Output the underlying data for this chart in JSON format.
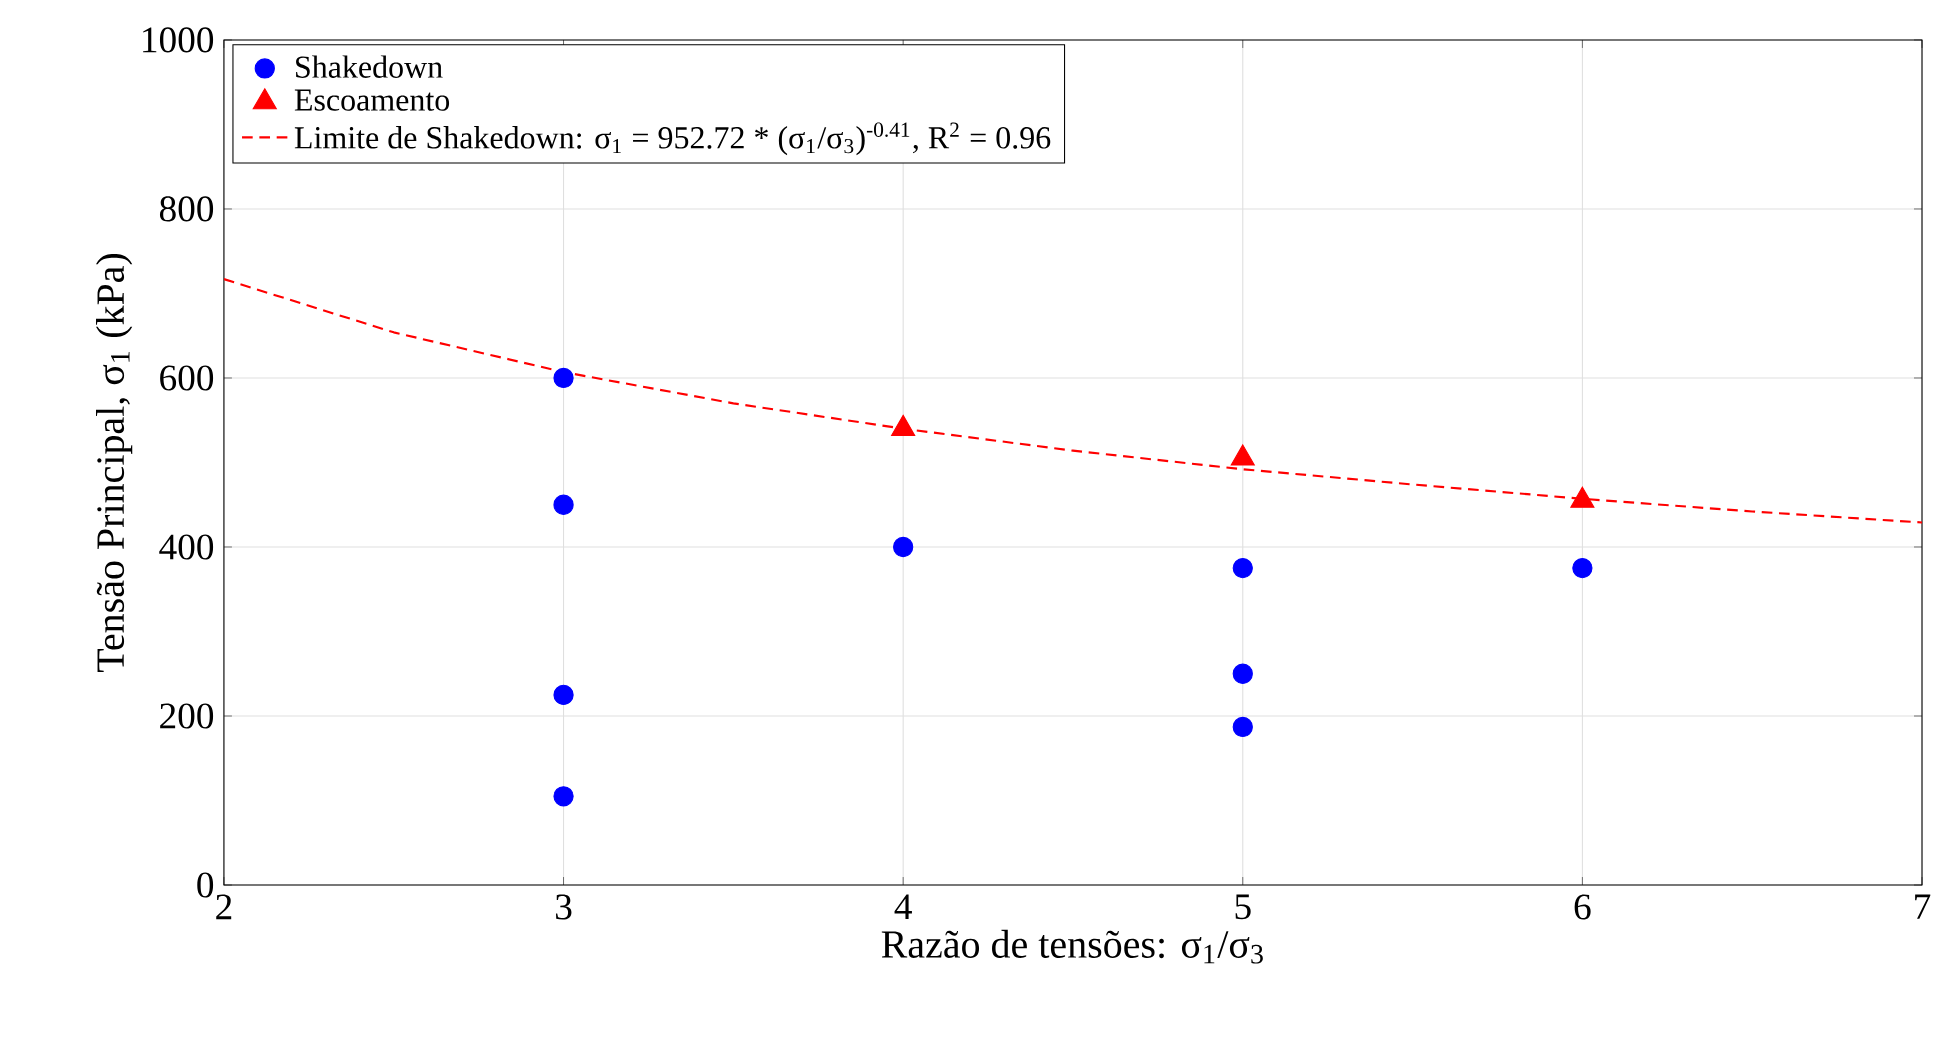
{
  "chart_data": {
    "type": "scatter",
    "xlabel": "Razão de tensões: σ$_{1}$/σ$_{3}$",
    "ylabel": "Tensão Principal, σ$_{1}$ (kPa)",
    "xlim": [
      2,
      7
    ],
    "ylim": [
      0,
      1000
    ],
    "xticks": [
      2,
      3,
      4,
      5,
      6,
      7
    ],
    "yticks": [
      0,
      200,
      400,
      600,
      800,
      1000
    ],
    "grid": true,
    "legend": "top left",
    "series": [
      {
        "name": "Shakedown",
        "marker": "circle",
        "color": "#0000ff",
        "x": [
          3,
          3,
          3,
          3,
          4,
          5,
          5,
          5,
          6
        ],
        "values": [
          600,
          450,
          225,
          105,
          400,
          375,
          250,
          187,
          375
        ]
      },
      {
        "name": "Escoamento",
        "marker": "triangle",
        "color": "#ff0000",
        "x": [
          4,
          5,
          6
        ],
        "values": [
          540,
          505,
          455
        ]
      },
      {
        "name": "Limite de Shakedown: σ$_{1}$ = 952.72 * (σ$_{1}$/σ$_{3}$)$^{-0.41}$,     R$^{2}$ = 0.96",
        "type": "line",
        "line_style": "dashed",
        "marker": "none",
        "color": "#ff0000",
        "x": [
          2,
          2.5,
          3,
          3.5,
          4,
          4.5,
          5,
          5.5,
          6,
          6.5,
          7
        ],
        "values": [
          717,
          654,
          607,
          570,
          540,
          514,
          492,
          474,
          457,
          442,
          429
        ]
      }
    ]
  }
}
